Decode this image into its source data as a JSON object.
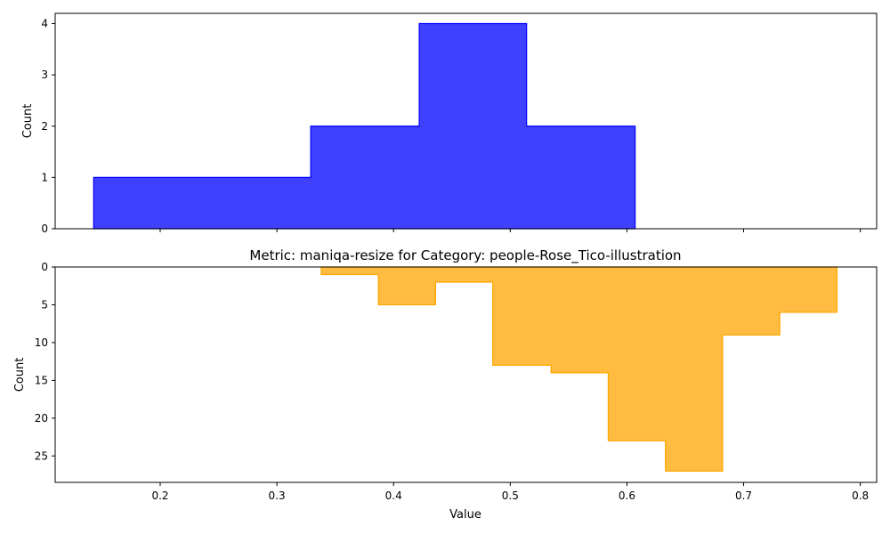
{
  "colors": {
    "top_fill": "#0000ff",
    "top_edge": "#0000ff",
    "bottom_fill": "#ffa500",
    "bottom_edge": "#ffa500"
  },
  "chart_data": [
    {
      "type": "histogram-step",
      "title": "",
      "xlabel": "",
      "ylabel": "Count",
      "xlim": [
        0.11,
        0.814
      ],
      "ylim": [
        0,
        4.2
      ],
      "y_inverted": false,
      "x_ticks": [
        "0.2",
        "0.3",
        "0.4",
        "0.5",
        "0.6",
        "0.7",
        "0.8"
      ],
      "x_tick_labels_visible": false,
      "y_ticks": [
        "0",
        "1",
        "2",
        "3",
        "4"
      ],
      "bin_edges": [
        0.143,
        0.236,
        0.329,
        0.422,
        0.514,
        0.607
      ],
      "counts": [
        1,
        1,
        2,
        4,
        2
      ]
    },
    {
      "type": "histogram-step",
      "title": "Metric: maniqa-resize for Category: people-Rose_Tico-illustration",
      "xlabel": "Value",
      "ylabel": "Count",
      "xlim": [
        0.11,
        0.814
      ],
      "ylim": [
        28.5,
        0
      ],
      "y_inverted": true,
      "x_ticks": [
        "0.2",
        "0.3",
        "0.4",
        "0.5",
        "0.6",
        "0.7",
        "0.8"
      ],
      "x_tick_labels_visible": true,
      "y_ticks": [
        "0",
        "5",
        "10",
        "15",
        "20",
        "25"
      ],
      "bin_edges": [
        0.338,
        0.387,
        0.436,
        0.485,
        0.535,
        0.584,
        0.633,
        0.682,
        0.731,
        0.78
      ],
      "counts": [
        1,
        5,
        2,
        13,
        14,
        23,
        27,
        9,
        6
      ]
    }
  ]
}
